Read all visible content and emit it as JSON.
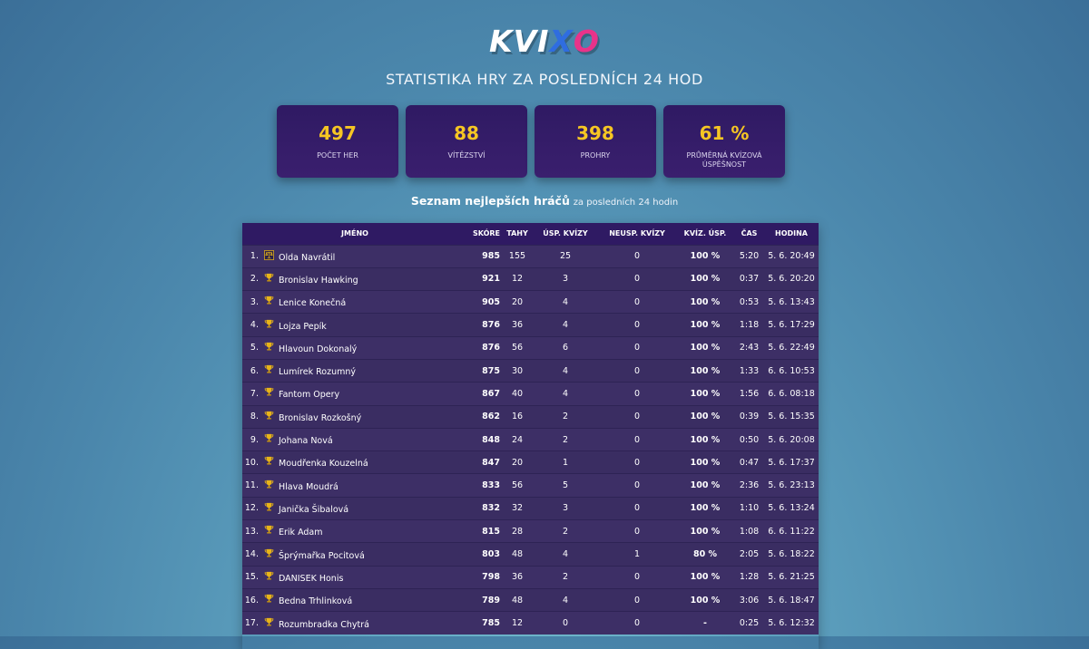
{
  "logo": {
    "letters": [
      {
        "char": "K",
        "color": "#ffffff"
      },
      {
        "char": "V",
        "color": "#ffffff"
      },
      {
        "char": "I",
        "color": "#ffffff"
      },
      {
        "char": "X",
        "color": "#2f6de0"
      },
      {
        "char": "O",
        "color": "#e8338a"
      }
    ]
  },
  "page_title": "STATISTIKA HRY ZA POSLEDNÍCH 24 HOD",
  "stats": [
    {
      "value": "497",
      "label": "POČET HER"
    },
    {
      "value": "88",
      "label": "VÍTĚZSTVÍ"
    },
    {
      "value": "398",
      "label": "PROHRY"
    },
    {
      "value": "61 %",
      "label": "PRŮMĚRNÁ KVÍZOVÁ ÚSPĚŠNOST"
    }
  ],
  "subtitle": {
    "strong": "Seznam nejlepších hráčů",
    "rest": "za posledních 24 hodin"
  },
  "table": {
    "headers": {
      "name": "JMÉNO",
      "score": "SKÓRE",
      "moves": "TAHY",
      "quiz_ok": "ÚSP. KVÍZY",
      "quiz_fail": "NEUSP. KVÍZY",
      "quiz_pct": "KVÍZ. ÚSP.",
      "time": "ČAS",
      "hour": "HODINA"
    },
    "rows": [
      {
        "rank": "1.",
        "icon": "scales-icon",
        "name": "Olda Navrátil",
        "score": "985",
        "moves": "155",
        "quiz_ok": "25",
        "quiz_fail": "0",
        "quiz_pct": "100 %",
        "time": "5:20",
        "hour": "5. 6. 20:49"
      },
      {
        "rank": "2.",
        "icon": "trophy-icon",
        "name": "Bronislav Hawking",
        "score": "921",
        "moves": "12",
        "quiz_ok": "3",
        "quiz_fail": "0",
        "quiz_pct": "100 %",
        "time": "0:37",
        "hour": "5. 6. 20:20"
      },
      {
        "rank": "3.",
        "icon": "trophy-icon",
        "name": "Lenice Konečná",
        "score": "905",
        "moves": "20",
        "quiz_ok": "4",
        "quiz_fail": "0",
        "quiz_pct": "100 %",
        "time": "0:53",
        "hour": "5. 6. 13:43"
      },
      {
        "rank": "4.",
        "icon": "trophy-icon",
        "name": "Lojza Pepík",
        "score": "876",
        "moves": "36",
        "quiz_ok": "4",
        "quiz_fail": "0",
        "quiz_pct": "100 %",
        "time": "1:18",
        "hour": "5. 6. 17:29"
      },
      {
        "rank": "5.",
        "icon": "trophy-icon",
        "name": "Hlavoun Dokonalý",
        "score": "876",
        "moves": "56",
        "quiz_ok": "6",
        "quiz_fail": "0",
        "quiz_pct": "100 %",
        "time": "2:43",
        "hour": "5. 6. 22:49"
      },
      {
        "rank": "6.",
        "icon": "trophy-icon",
        "name": "Lumírek Rozumný",
        "score": "875",
        "moves": "30",
        "quiz_ok": "4",
        "quiz_fail": "0",
        "quiz_pct": "100 %",
        "time": "1:33",
        "hour": "6. 6. 10:53"
      },
      {
        "rank": "7.",
        "icon": "trophy-icon",
        "name": "Fantom Opery",
        "score": "867",
        "moves": "40",
        "quiz_ok": "4",
        "quiz_fail": "0",
        "quiz_pct": "100 %",
        "time": "1:56",
        "hour": "6. 6. 08:18"
      },
      {
        "rank": "8.",
        "icon": "trophy-icon",
        "name": "Bronislav Rozkošný",
        "score": "862",
        "moves": "16",
        "quiz_ok": "2",
        "quiz_fail": "0",
        "quiz_pct": "100 %",
        "time": "0:39",
        "hour": "5. 6. 15:35"
      },
      {
        "rank": "9.",
        "icon": "trophy-icon",
        "name": "Johana Nová",
        "score": "848",
        "moves": "24",
        "quiz_ok": "2",
        "quiz_fail": "0",
        "quiz_pct": "100 %",
        "time": "0:50",
        "hour": "5. 6. 20:08"
      },
      {
        "rank": "10.",
        "icon": "trophy-icon",
        "name": "Moudřenka Kouzelná",
        "score": "847",
        "moves": "20",
        "quiz_ok": "1",
        "quiz_fail": "0",
        "quiz_pct": "100 %",
        "time": "0:47",
        "hour": "5. 6. 17:37"
      },
      {
        "rank": "11.",
        "icon": "trophy-icon",
        "name": "Hlava Moudrá",
        "score": "833",
        "moves": "56",
        "quiz_ok": "5",
        "quiz_fail": "0",
        "quiz_pct": "100 %",
        "time": "2:36",
        "hour": "5. 6. 23:13"
      },
      {
        "rank": "12.",
        "icon": "trophy-icon",
        "name": "Janička Šibalová",
        "score": "832",
        "moves": "32",
        "quiz_ok": "3",
        "quiz_fail": "0",
        "quiz_pct": "100 %",
        "time": "1:10",
        "hour": "5. 6. 13:24"
      },
      {
        "rank": "13.",
        "icon": "trophy-icon",
        "name": "Erik Adam",
        "score": "815",
        "moves": "28",
        "quiz_ok": "2",
        "quiz_fail": "0",
        "quiz_pct": "100 %",
        "time": "1:08",
        "hour": "6. 6. 11:22"
      },
      {
        "rank": "14.",
        "icon": "trophy-icon",
        "name": "Šprýmařka Pocitová",
        "score": "803",
        "moves": "48",
        "quiz_ok": "4",
        "quiz_fail": "1",
        "quiz_pct": "80 %",
        "time": "2:05",
        "hour": "5. 6. 18:22"
      },
      {
        "rank": "15.",
        "icon": "trophy-icon",
        "name": "DANISEK Honis",
        "score": "798",
        "moves": "36",
        "quiz_ok": "2",
        "quiz_fail": "0",
        "quiz_pct": "100 %",
        "time": "1:28",
        "hour": "5. 6. 21:25"
      },
      {
        "rank": "16.",
        "icon": "trophy-icon",
        "name": "Bedna Trhlinková",
        "score": "789",
        "moves": "48",
        "quiz_ok": "4",
        "quiz_fail": "0",
        "quiz_pct": "100 %",
        "time": "3:06",
        "hour": "5. 6. 18:47"
      },
      {
        "rank": "17.",
        "icon": "trophy-icon",
        "name": "Rozumbradka Chytrá",
        "score": "785",
        "moves": "12",
        "quiz_ok": "0",
        "quiz_fail": "0",
        "quiz_pct": "-",
        "time": "0:25",
        "hour": "5. 6. 12:32"
      }
    ]
  },
  "colors": {
    "accent_yellow": "#f6c623",
    "card_bg": "#2f1a63",
    "table_row_bg": "#3d2f66",
    "logo_blue": "#2f6de0",
    "logo_pink": "#e8338a",
    "trophy_gold": "#e8b418"
  }
}
